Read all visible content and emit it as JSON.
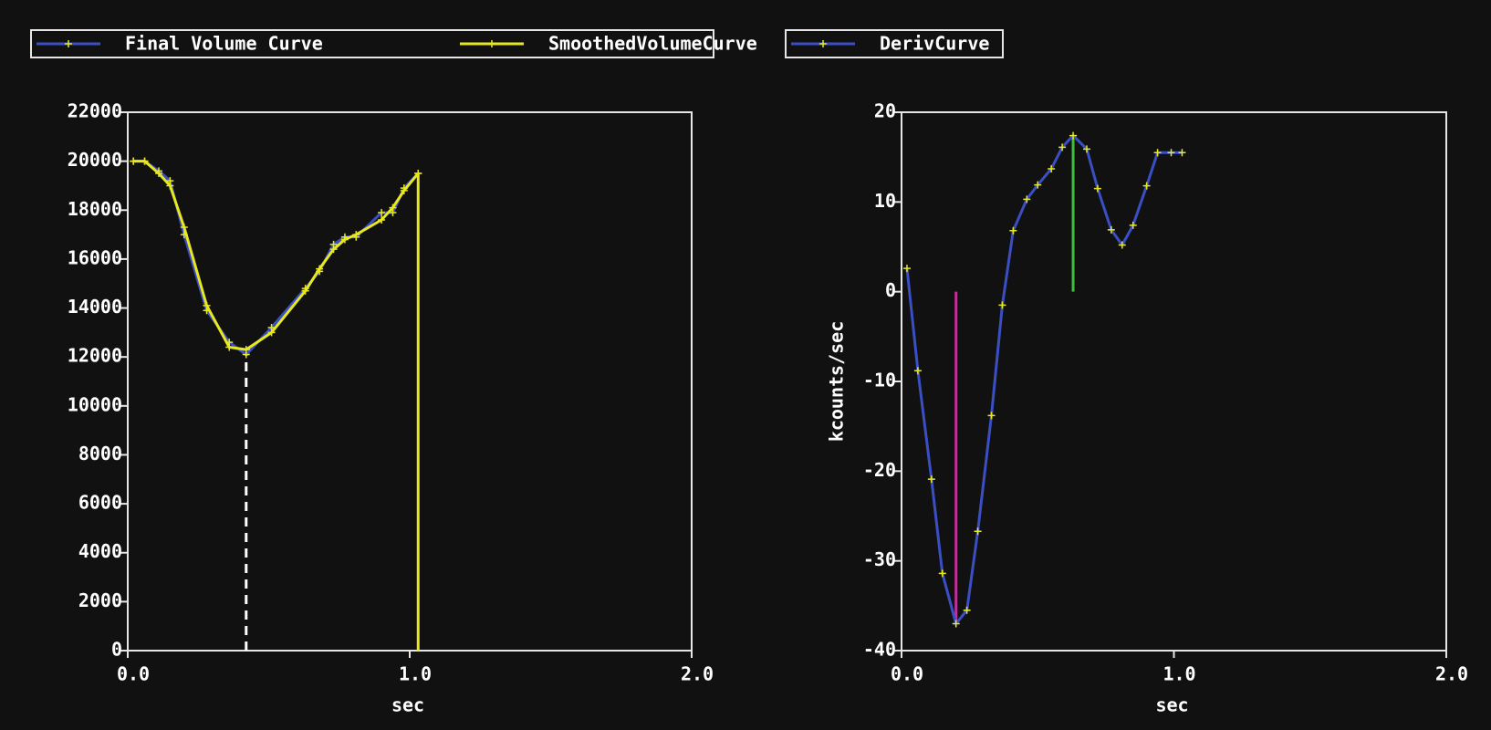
{
  "chart_data": [
    {
      "type": "line",
      "xlabel": "sec",
      "x": [
        0.02,
        0.06,
        0.11,
        0.15,
        0.2,
        0.28,
        0.36,
        0.42,
        0.51,
        0.63,
        0.68,
        0.73,
        0.77,
        0.81,
        0.9,
        0.94,
        0.98,
        1.03
      ],
      "series": [
        {
          "name": "Final Volume Curve",
          "color": "#3b4fc4",
          "marker_color": "#e8e820",
          "values": [
            20000,
            20000,
            19600,
            19200,
            17000,
            13900,
            12600,
            12100,
            13200,
            14800,
            15500,
            16600,
            16900,
            16900,
            17900,
            17900,
            18900,
            19500
          ]
        },
        {
          "name": "SmoothedVolumeCurve",
          "color": "#e8e820",
          "marker_color": "#e8e820",
          "values": [
            20000,
            20000,
            19500,
            19000,
            17300,
            14100,
            12400,
            12300,
            13000,
            14700,
            15600,
            16400,
            16800,
            17000,
            17600,
            18100,
            18800,
            19500
          ]
        }
      ],
      "guides": [
        {
          "x": 0.42,
          "y": 12100,
          "color": "#ffffff",
          "dashed": true
        },
        {
          "x": 1.03,
          "y": 19500,
          "color": "#e8e820",
          "dashed": false
        }
      ],
      "xlim": [
        0,
        2
      ],
      "xticks": [
        {
          "value": 0,
          "label": "0.0"
        },
        {
          "value": 1,
          "label": "1.0"
        },
        {
          "value": 2,
          "label": "2.0"
        }
      ],
      "ylim": [
        0,
        22000
      ],
      "yticks": [
        0,
        2000,
        4000,
        6000,
        8000,
        10000,
        12000,
        14000,
        16000,
        18000,
        20000,
        22000
      ]
    },
    {
      "type": "line",
      "xlabel": "sec",
      "ylabel": "kcounts/sec",
      "x": [
        0.02,
        0.06,
        0.11,
        0.15,
        0.2,
        0.24,
        0.28,
        0.33,
        0.37,
        0.41,
        0.46,
        0.5,
        0.55,
        0.59,
        0.63,
        0.68,
        0.72,
        0.77,
        0.81,
        0.85,
        0.9,
        0.94,
        0.99,
        1.03
      ],
      "series": [
        {
          "name": "DerivCurve",
          "color": "#3b4fc4",
          "marker_color": "#e8e820",
          "values": [
            2.6,
            -8.8,
            -20.9,
            -31.4,
            -37,
            -35.5,
            -26.7,
            -13.8,
            -1.5,
            6.8,
            10.3,
            11.9,
            13.7,
            16.1,
            17.4,
            15.9,
            11.5,
            6.9,
            5.2,
            7.4,
            11.8,
            15.5,
            15.5,
            15.5
          ]
        }
      ],
      "guides": [
        {
          "x": 0.2,
          "y": -37,
          "color": "#c0309a",
          "dashed": false
        },
        {
          "x": 0.63,
          "y": 17.4,
          "color": "#3cc03c",
          "dashed": false
        }
      ],
      "xlim": [
        0,
        2
      ],
      "xticks": [
        {
          "value": 0,
          "label": "0.0"
        },
        {
          "value": 1,
          "label": "1.0"
        },
        {
          "value": 2,
          "label": "2.0"
        }
      ],
      "ylim": [
        -40,
        20
      ],
      "yticks": [
        -40,
        -30,
        -20,
        -10,
        0,
        10,
        20
      ]
    }
  ]
}
